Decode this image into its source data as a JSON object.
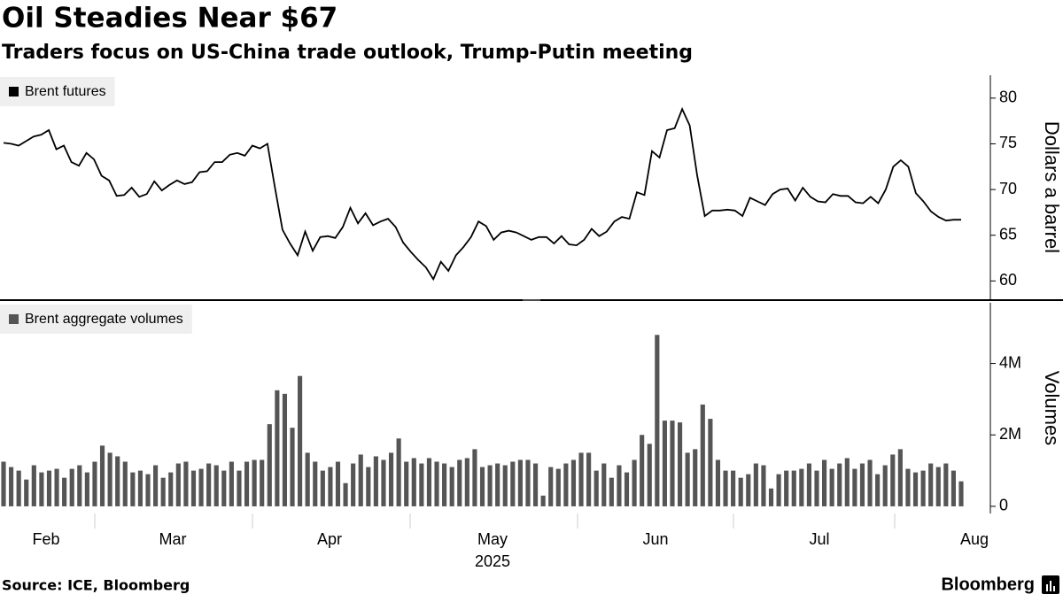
{
  "title": "Oil Steadies Near $67",
  "subtitle": "Traders focus on US-China trade outlook, Trump-Putin meeting",
  "source": "Source: ICE, Bloomberg",
  "brand": "Bloomberg",
  "chart_data": [
    {
      "type": "line",
      "ylabel": "Dollars a barrel",
      "series": [
        {
          "name": "Brent futures",
          "color": "#000000",
          "values": [
            75.1,
            75.0,
            74.8,
            75.3,
            75.8,
            76.0,
            76.5,
            74.4,
            74.8,
            73.0,
            72.6,
            74.0,
            73.3,
            71.5,
            71.0,
            69.3,
            69.4,
            70.2,
            69.2,
            69.5,
            70.9,
            69.9,
            70.5,
            71.0,
            70.6,
            70.8,
            71.9,
            72.0,
            73.0,
            73.0,
            73.8,
            74.0,
            73.7,
            74.8,
            74.5,
            75.0,
            70.2,
            65.6,
            64.1,
            62.8,
            65.4,
            63.3,
            64.8,
            64.9,
            64.7,
            65.9,
            68.0,
            66.3,
            67.4,
            66.1,
            66.5,
            66.8,
            65.9,
            64.2,
            63.2,
            62.3,
            61.5,
            60.2,
            62.1,
            61.1,
            62.8,
            63.7,
            64.8,
            66.5,
            66.0,
            64.5,
            65.3,
            65.5,
            65.3,
            64.9,
            64.5,
            64.8,
            64.8,
            64.1,
            64.9,
            64.0,
            63.9,
            64.5,
            65.7,
            64.9,
            65.4,
            66.5,
            67.0,
            66.8,
            69.7,
            69.4,
            74.2,
            73.5,
            76.5,
            76.7,
            78.8,
            77.0,
            71.5,
            67.1,
            67.7,
            67.7,
            67.8,
            67.7,
            67.1,
            69.1,
            68.7,
            68.3,
            69.5,
            70.0,
            70.1,
            68.8,
            70.2,
            69.2,
            68.7,
            68.6,
            69.5,
            69.3,
            69.3,
            68.6,
            68.5,
            69.2,
            68.5,
            70.0,
            72.5,
            73.2,
            72.5,
            69.6,
            68.7,
            67.6,
            67.0,
            66.6,
            66.7,
            66.7
          ]
        }
      ],
      "ylim": [
        58,
        82.5
      ],
      "yticks": [
        60,
        65,
        70,
        75,
        80
      ]
    },
    {
      "type": "bar",
      "ylabel": "Volumes",
      "xlabel": "2025",
      "xticks": [
        "Feb",
        "Mar",
        "Apr",
        "May",
        "Jun",
        "Jul",
        "Aug"
      ],
      "series": [
        {
          "name": "Brent aggregate volumes",
          "color": "#555555",
          "values": [
            1250000,
            1100000,
            1000000,
            750000,
            1150000,
            950000,
            1000000,
            1050000,
            800000,
            1050000,
            1150000,
            950000,
            1250000,
            1700000,
            1500000,
            1400000,
            1250000,
            950000,
            1000000,
            900000,
            1150000,
            800000,
            950000,
            1200000,
            1250000,
            1000000,
            1050000,
            1200000,
            1150000,
            1000000,
            1250000,
            1000000,
            1250000,
            1300000,
            1300000,
            2300000,
            3250000,
            3150000,
            2200000,
            3650000,
            1500000,
            1250000,
            1000000,
            1100000,
            1250000,
            650000,
            1200000,
            1450000,
            1100000,
            1400000,
            1300000,
            1500000,
            1900000,
            1250000,
            1350000,
            1200000,
            1350000,
            1250000,
            1200000,
            1100000,
            1300000,
            1350000,
            1600000,
            1100000,
            1150000,
            1200000,
            1150000,
            1250000,
            1300000,
            1300000,
            1200000,
            300000,
            1100000,
            1050000,
            1200000,
            1300000,
            1500000,
            1500000,
            1000000,
            1200000,
            800000,
            1150000,
            950000,
            1300000,
            2000000,
            1750000,
            4800000,
            2400000,
            2400000,
            2350000,
            1500000,
            1600000,
            2850000,
            2450000,
            1300000,
            1000000,
            1000000,
            800000,
            900000,
            1200000,
            1150000,
            500000,
            900000,
            1000000,
            1000000,
            1050000,
            1200000,
            1000000,
            1300000,
            1050000,
            1200000,
            1350000,
            1050000,
            1200000,
            1300000,
            900000,
            1150000,
            1450000,
            1600000,
            1050000,
            950000,
            1000000,
            1200000,
            1100000,
            1200000,
            1000000,
            700000
          ]
        }
      ],
      "ylim": [
        -200000,
        5700000
      ],
      "yticks": [
        0,
        {
          "value": 2000000,
          "label": "2M"
        },
        {
          "value": 4000000,
          "label": "4M"
        }
      ]
    }
  ]
}
